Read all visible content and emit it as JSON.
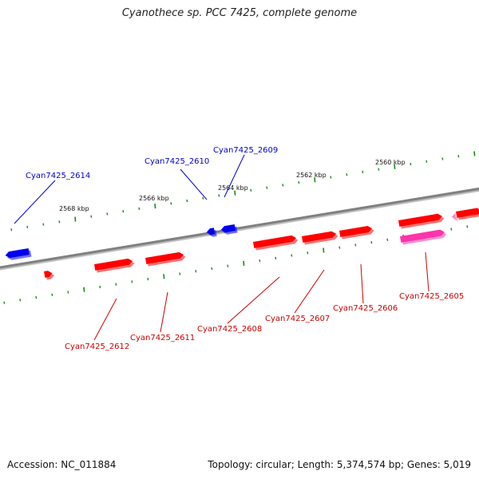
{
  "title": "Cyanothece sp. PCC 7425, complete genome",
  "footer": {
    "accession": "Accession: NC_011884",
    "summary": "Topology: circular; Length: 5,374,574 bp; Genes: 5,019"
  },
  "colors": {
    "forward_gene": "#ff0000",
    "reverse_gene": "#0000ee",
    "rna_gene": "#ff33aa",
    "tick": "#1a8a1a",
    "backbone": "#808080"
  },
  "kbp_labels": [
    "2568 kbp",
    "2566 kbp",
    "2564 kbp",
    "2562 kbp",
    "2560 kbp"
  ],
  "genes": [
    {
      "id": "Cyan7425_2614",
      "strand": "-",
      "label_color": "#0000cc"
    },
    {
      "id": "Cyan7425_2610",
      "strand": "-",
      "label_color": "#0000cc"
    },
    {
      "id": "Cyan7425_2609",
      "strand": "-",
      "label_color": "#0000cc"
    },
    {
      "id": "Cyan7425_2612",
      "strand": "+",
      "label_color": "#cc0000"
    },
    {
      "id": "Cyan7425_2611",
      "strand": "+",
      "label_color": "#cc0000"
    },
    {
      "id": "Cyan7425_2608",
      "strand": "+",
      "label_color": "#cc0000"
    },
    {
      "id": "Cyan7425_2607",
      "strand": "+",
      "label_color": "#cc0000"
    },
    {
      "id": "Cyan7425_2606",
      "strand": "+",
      "label_color": "#cc0000"
    },
    {
      "id": "Cyan7425_2605",
      "strand": "+",
      "label_color": "#cc0000"
    }
  ]
}
